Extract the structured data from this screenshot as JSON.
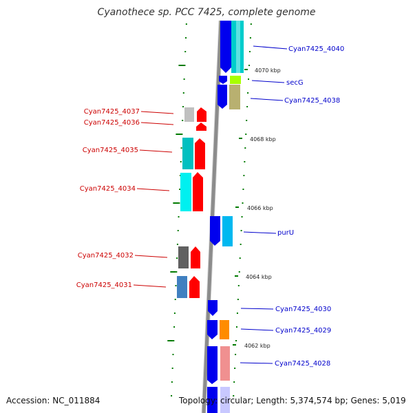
{
  "title": "Cyanothece sp. PCC 7425, complete genome",
  "footer": {
    "accession": "Accession: NC_011884",
    "topology": "Topology: circular; Length: 5,374,574 bp; Genes: 5,019"
  },
  "scale_labels": [
    "4070 kbp",
    "4068 kbp",
    "4066 kbp",
    "4064 kbp",
    "4062 kbp"
  ],
  "left_genes": [
    "Cyan7425_4037",
    "Cyan7425_4036",
    "Cyan7425_4035",
    "Cyan7425_4034",
    "Cyan7425_4032",
    "Cyan7425_4031"
  ],
  "right_genes": [
    "Cyan7425_4040",
    "secG",
    "Cyan7425_4038",
    "purU",
    "Cyan7425_4030",
    "Cyan7425_4029",
    "Cyan7425_4028"
  ],
  "colors": {
    "backbone": "#8c8c8c",
    "forward_strand": "#ff0000",
    "reverse_strand": "#0000ee",
    "left_label": "#cc0000",
    "right_label": "#0000cc",
    "tick": "#007a00"
  }
}
